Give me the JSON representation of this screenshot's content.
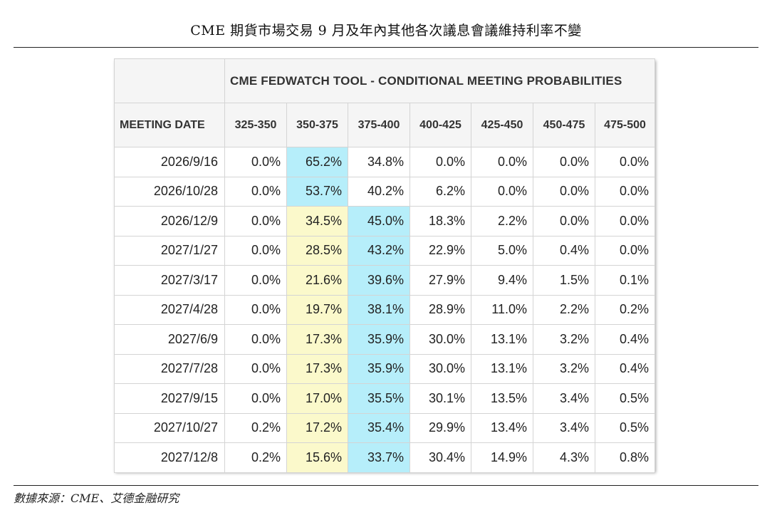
{
  "title": "CME 期貨市場交易 9 月及年內其他各次議息會議維持利率不變",
  "source": "數據來源：CME、艾德金融研究",
  "colors": {
    "highlight_blue": "#b6eefa",
    "highlight_yellow": "#fbf9cb",
    "header_bg": "#f5f5f5"
  },
  "chart_data": {
    "type": "table",
    "title": "CME FEDWATCH TOOL - CONDITIONAL MEETING PROBABILITIES",
    "row_header": "MEETING DATE",
    "columns": [
      "325-350",
      "350-375",
      "375-400",
      "400-425",
      "425-450",
      "450-475",
      "475-500"
    ],
    "rows": [
      {
        "date": "2026/9/16",
        "values": [
          "0.0%",
          "65.2%",
          "34.8%",
          "0.0%",
          "0.0%",
          "0.0%",
          "0.0%"
        ],
        "highlight": {
          "blue": 1,
          "yellow": -1
        }
      },
      {
        "date": "2026/10/28",
        "values": [
          "0.0%",
          "53.7%",
          "40.2%",
          "6.2%",
          "0.0%",
          "0.0%",
          "0.0%"
        ],
        "highlight": {
          "blue": 1,
          "yellow": -1
        }
      },
      {
        "date": "2026/12/9",
        "values": [
          "0.0%",
          "34.5%",
          "45.0%",
          "18.3%",
          "2.2%",
          "0.0%",
          "0.0%"
        ],
        "highlight": {
          "blue": 2,
          "yellow": 1
        }
      },
      {
        "date": "2027/1/27",
        "values": [
          "0.0%",
          "28.5%",
          "43.2%",
          "22.9%",
          "5.0%",
          "0.4%",
          "0.0%"
        ],
        "highlight": {
          "blue": 2,
          "yellow": 1
        }
      },
      {
        "date": "2027/3/17",
        "values": [
          "0.0%",
          "21.6%",
          "39.6%",
          "27.9%",
          "9.4%",
          "1.5%",
          "0.1%"
        ],
        "highlight": {
          "blue": 2,
          "yellow": 1
        }
      },
      {
        "date": "2027/4/28",
        "values": [
          "0.0%",
          "19.7%",
          "38.1%",
          "28.9%",
          "11.0%",
          "2.2%",
          "0.2%"
        ],
        "highlight": {
          "blue": 2,
          "yellow": 1
        }
      },
      {
        "date": "2027/6/9",
        "values": [
          "0.0%",
          "17.3%",
          "35.9%",
          "30.0%",
          "13.1%",
          "3.2%",
          "0.4%"
        ],
        "highlight": {
          "blue": 2,
          "yellow": 1
        }
      },
      {
        "date": "2027/7/28",
        "values": [
          "0.0%",
          "17.3%",
          "35.9%",
          "30.0%",
          "13.1%",
          "3.2%",
          "0.4%"
        ],
        "highlight": {
          "blue": 2,
          "yellow": 1
        }
      },
      {
        "date": "2027/9/15",
        "values": [
          "0.0%",
          "17.0%",
          "35.5%",
          "30.1%",
          "13.5%",
          "3.4%",
          "0.5%"
        ],
        "highlight": {
          "blue": 2,
          "yellow": 1
        }
      },
      {
        "date": "2027/10/27",
        "values": [
          "0.2%",
          "17.2%",
          "35.4%",
          "29.9%",
          "13.4%",
          "3.4%",
          "0.5%"
        ],
        "highlight": {
          "blue": 2,
          "yellow": 1
        }
      },
      {
        "date": "2027/12/8",
        "values": [
          "0.2%",
          "15.6%",
          "33.7%",
          "30.4%",
          "14.9%",
          "4.3%",
          "0.8%"
        ],
        "highlight": {
          "blue": 2,
          "yellow": 1
        }
      }
    ]
  }
}
